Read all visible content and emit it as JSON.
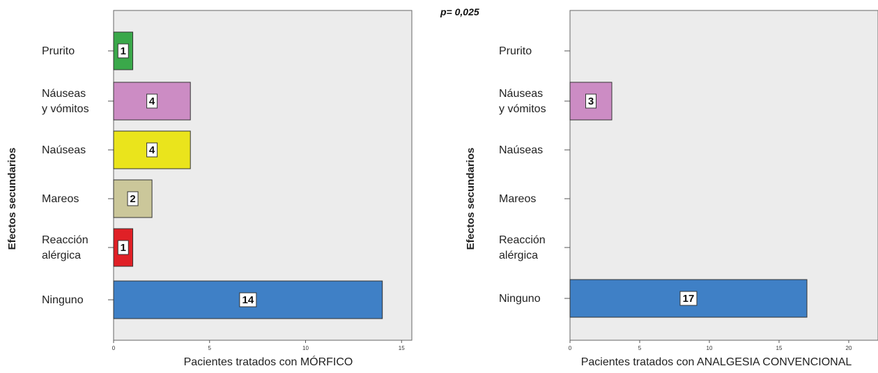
{
  "annotation": "p= 0,025",
  "chart_data": [
    {
      "type": "bar",
      "orientation": "horizontal",
      "title": "",
      "ylabel": "Efectos secundarios",
      "xlabel": "Pacientes tratados con MÓRFICO",
      "categories": [
        [
          "Prurito"
        ],
        [
          "Náuseas",
          "y vómitos"
        ],
        [
          "Naúseas"
        ],
        [
          "Mareos"
        ],
        [
          "Reacción",
          "alérgica"
        ],
        [
          "Ninguno"
        ]
      ],
      "values": [
        1,
        4,
        4,
        2,
        1,
        14
      ],
      "bar_colors": [
        "#3aa84a",
        "#cc8cc4",
        "#eae41c",
        "#cbc79a",
        "#e02026",
        "#3f80c6"
      ],
      "xlim": [
        0,
        15
      ],
      "xticks": [
        0,
        5,
        10,
        15
      ],
      "grid": false
    },
    {
      "type": "bar",
      "orientation": "horizontal",
      "title": "",
      "ylabel": "Efectos secundarios",
      "xlabel": "Pacientes tratados con ANALGESIA CONVENCIONAL",
      "categories": [
        [
          "Prurito"
        ],
        [
          "Náuseas",
          "y vómitos"
        ],
        [
          "Naúseas"
        ],
        [
          "Mareos"
        ],
        [
          "Reacción",
          "alérgica"
        ],
        [
          "Ninguno"
        ]
      ],
      "values": [
        null,
        3,
        null,
        null,
        null,
        17
      ],
      "bar_colors": [
        "#3aa84a",
        "#cc8cc4",
        "#eae41c",
        "#cbc79a",
        "#e02026",
        "#3f80c6"
      ],
      "xlim": [
        0,
        20
      ],
      "xticks": [
        0,
        5,
        10,
        15,
        20
      ],
      "grid": false
    }
  ]
}
